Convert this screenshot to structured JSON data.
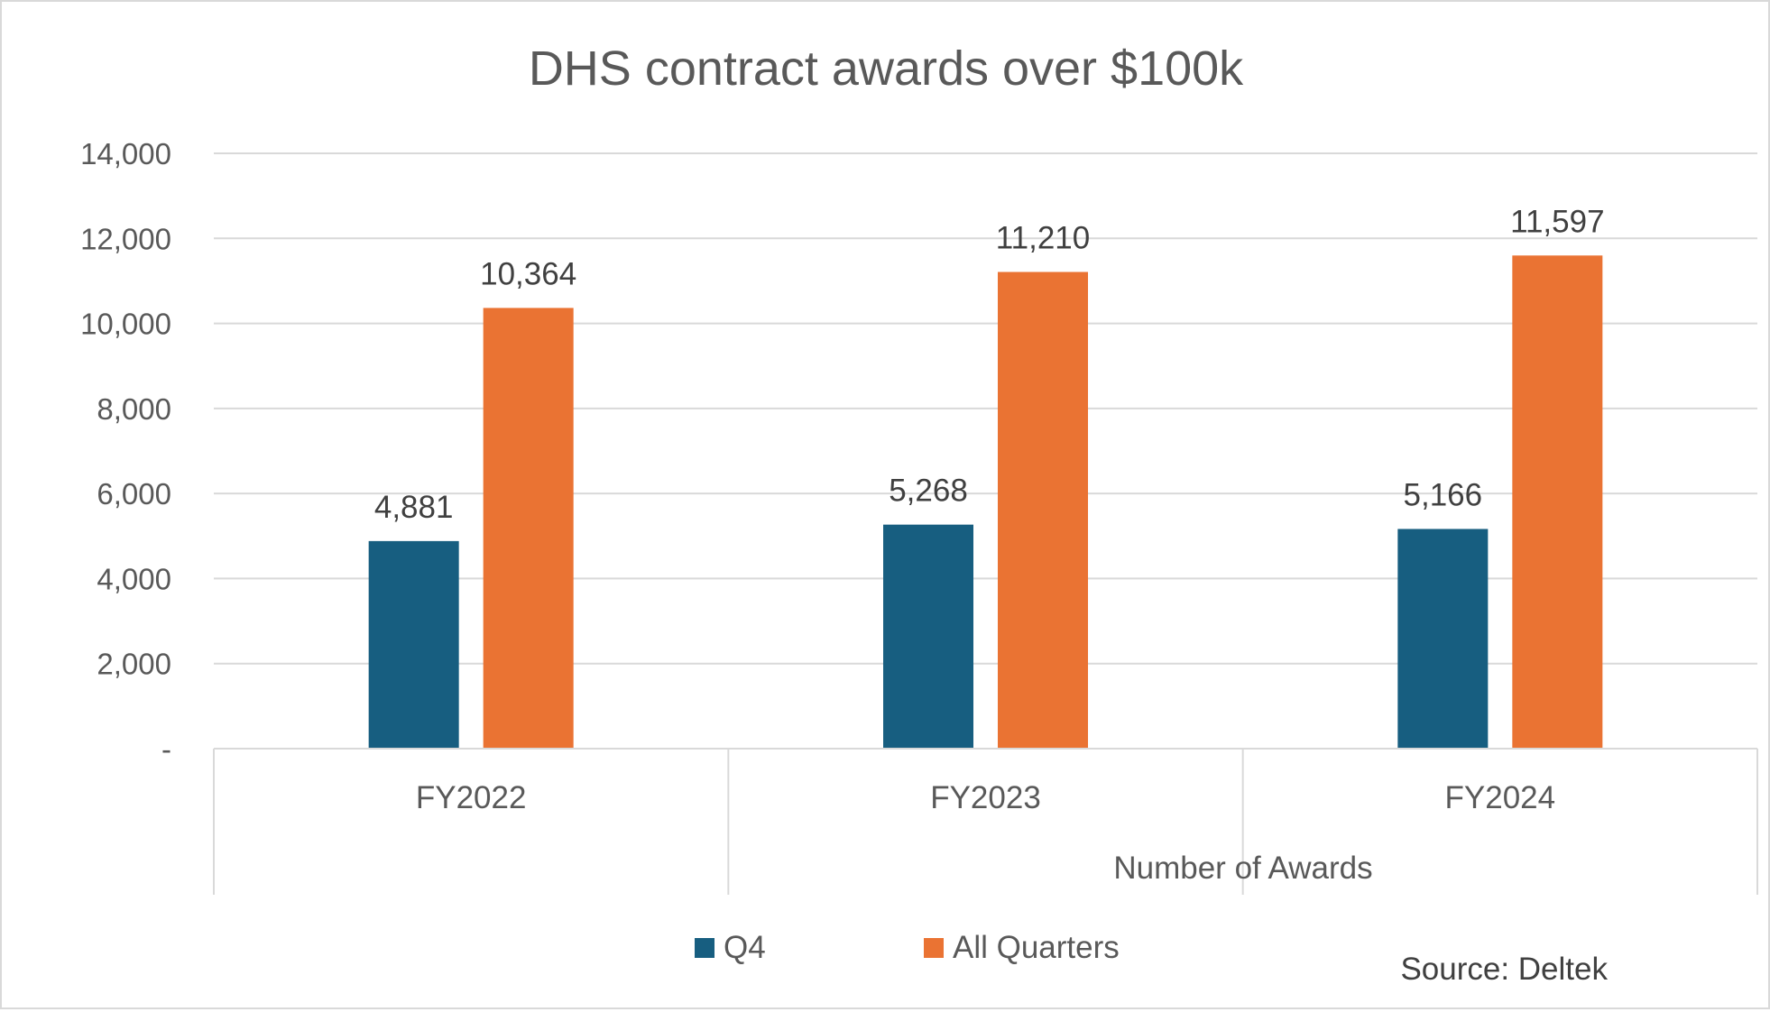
{
  "chart_data": {
    "type": "bar",
    "title": "DHS contract awards over $100k",
    "categories": [
      "FY2022",
      "FY2023",
      "FY2024"
    ],
    "group_label": "Number of Awards",
    "series": [
      {
        "name": "Q4",
        "values": [
          4881,
          5268,
          5166
        ],
        "labels": [
          "4,881",
          "5,268",
          "5,166"
        ],
        "color": "#175e80"
      },
      {
        "name": "All Quarters",
        "values": [
          10364,
          11210,
          11597
        ],
        "labels": [
          "10,364",
          "11,210",
          "11,597"
        ],
        "color": "#ea7333"
      }
    ],
    "ylim": [
      0,
      14000
    ],
    "yticks": [
      0,
      2000,
      4000,
      6000,
      8000,
      10000,
      12000,
      14000
    ],
    "ytick_labels": [
      "-",
      "2,000",
      "4,000",
      "6,000",
      "8,000",
      "10,000",
      "12,000",
      "14,000"
    ],
    "grid": true,
    "legend_position": "bottom",
    "source": "Source: Deltek"
  }
}
